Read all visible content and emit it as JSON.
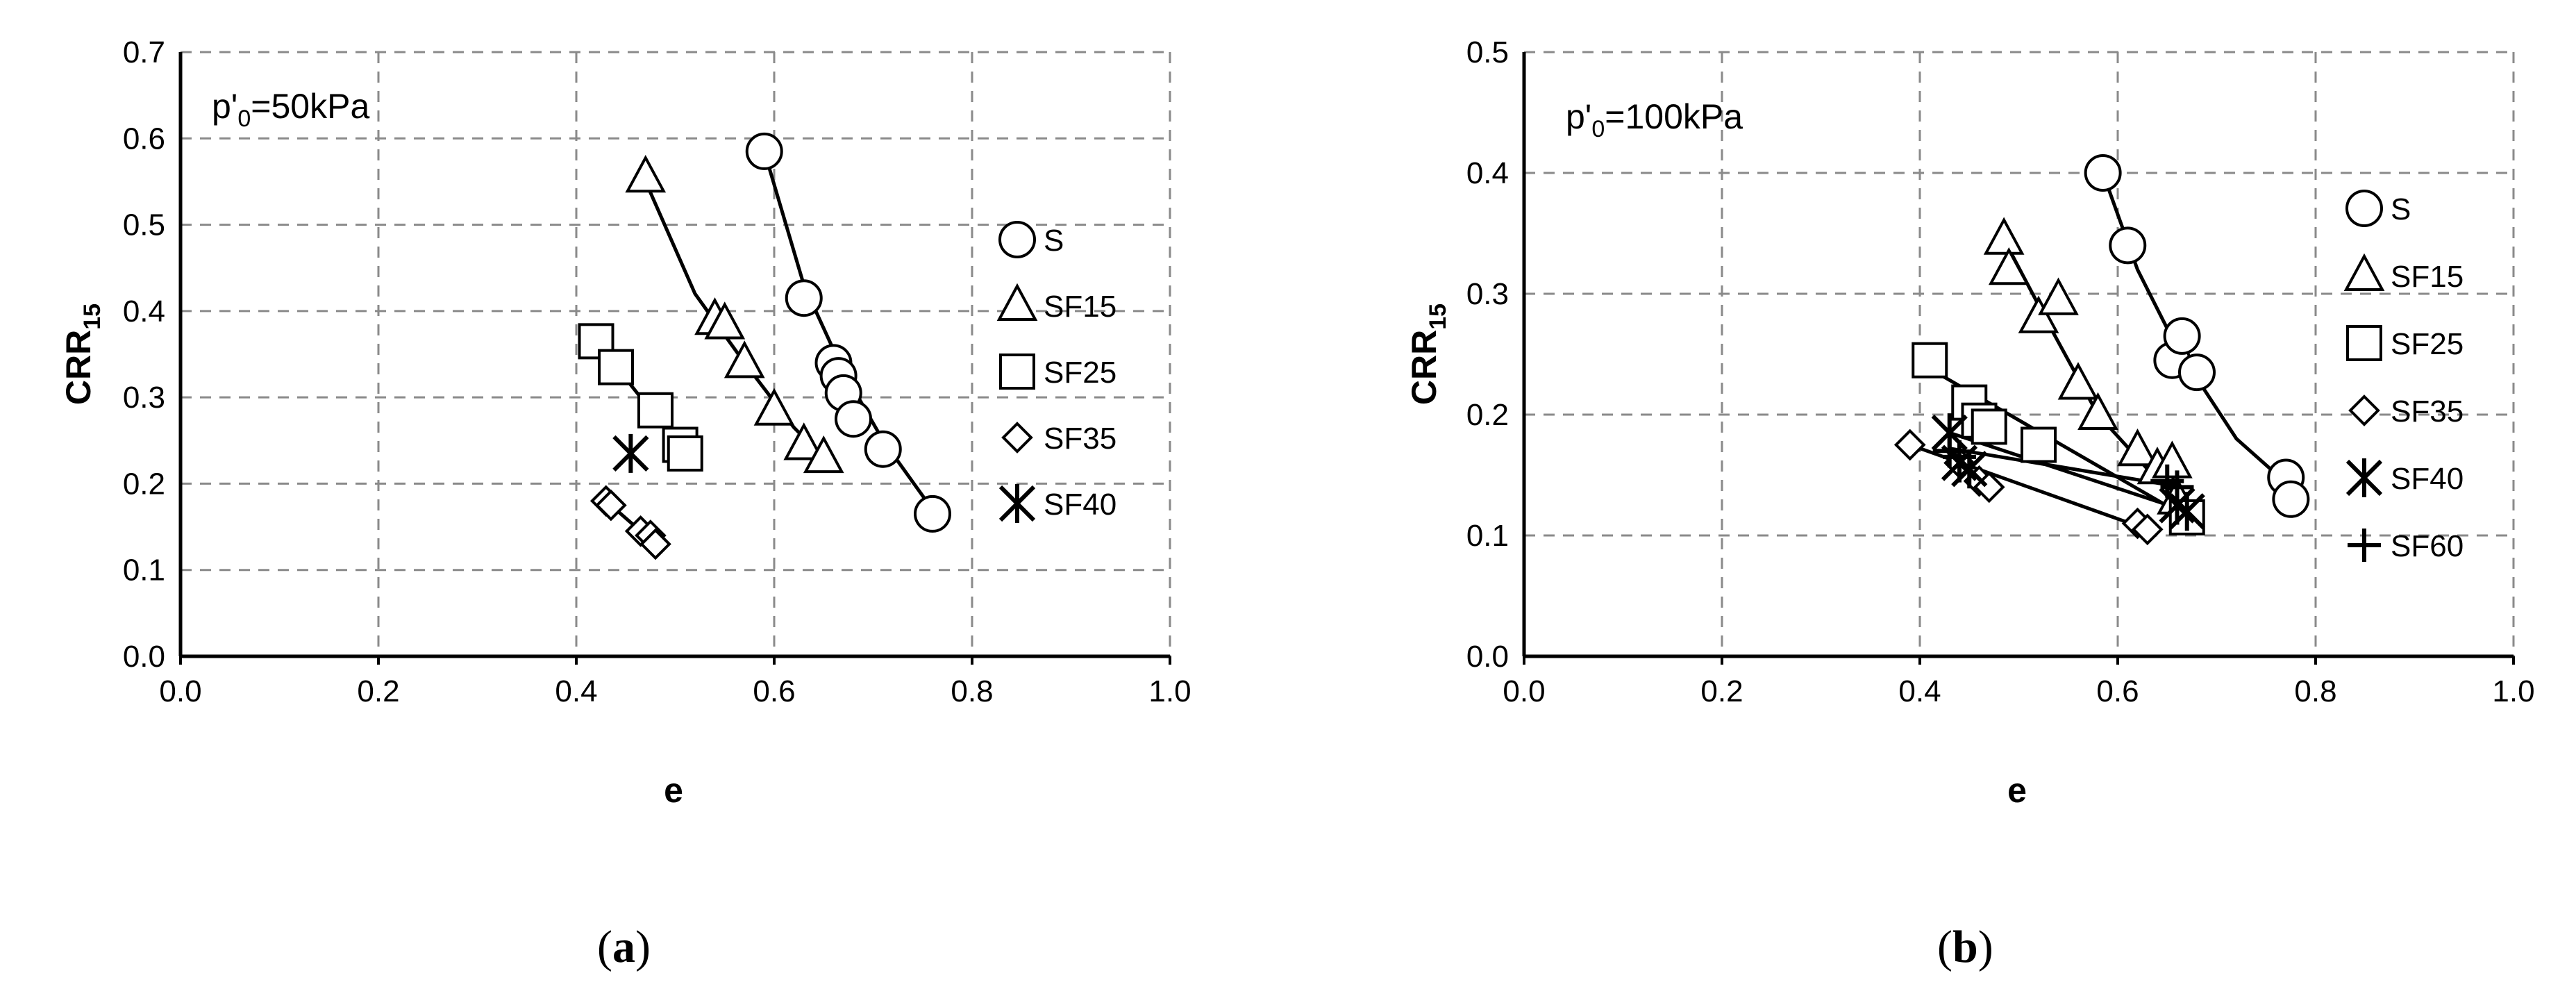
{
  "chart_data": [
    {
      "id": "a",
      "type": "scatter",
      "caption": "a",
      "annotation": {
        "base": "p'",
        "sub": "0",
        "rest": "=50kPa"
      },
      "xlabel": "e",
      "ylabel": {
        "base": "CRR",
        "sub": "15"
      },
      "xlim": [
        0,
        1.0
      ],
      "ylim": [
        0,
        0.7
      ],
      "xticks": [
        "0.0",
        "0.2",
        "0.4",
        "0.6",
        "0.8",
        "1.0"
      ],
      "yticks": [
        "0.0",
        "0.1",
        "0.2",
        "0.3",
        "0.4",
        "0.5",
        "0.6",
        "0.7"
      ],
      "grid": true,
      "legend_position": "right",
      "series": [
        {
          "name": "S",
          "marker": "circle",
          "points": [
            [
              0.59,
              0.585
            ],
            [
              0.63,
              0.415
            ],
            [
              0.66,
              0.34
            ],
            [
              0.665,
              0.325
            ],
            [
              0.67,
              0.305
            ],
            [
              0.68,
              0.275
            ],
            [
              0.71,
              0.24
            ],
            [
              0.76,
              0.165
            ]
          ],
          "fit": [
            [
              0.59,
              0.585
            ],
            [
              0.63,
              0.43
            ],
            [
              0.67,
              0.33
            ],
            [
              0.71,
              0.25
            ],
            [
              0.76,
              0.17
            ]
          ]
        },
        {
          "name": "SF15",
          "marker": "triangle",
          "points": [
            [
              0.47,
              0.555
            ],
            [
              0.54,
              0.39
            ],
            [
              0.55,
              0.385
            ],
            [
              0.57,
              0.34
            ],
            [
              0.6,
              0.285
            ],
            [
              0.63,
              0.245
            ],
            [
              0.65,
              0.23
            ]
          ],
          "fit": [
            [
              0.47,
              0.55
            ],
            [
              0.52,
              0.42
            ],
            [
              0.57,
              0.34
            ],
            [
              0.62,
              0.265
            ],
            [
              0.65,
              0.23
            ]
          ]
        },
        {
          "name": "SF25",
          "marker": "square",
          "points": [
            [
              0.42,
              0.365
            ],
            [
              0.44,
              0.335
            ],
            [
              0.48,
              0.285
            ],
            [
              0.505,
              0.245
            ],
            [
              0.51,
              0.235
            ]
          ],
          "fit": [
            [
              0.42,
              0.365
            ],
            [
              0.51,
              0.235
            ]
          ]
        },
        {
          "name": "SF35",
          "marker": "diamond",
          "points": [
            [
              0.43,
              0.18
            ],
            [
              0.435,
              0.175
            ],
            [
              0.465,
              0.145
            ],
            [
              0.475,
              0.14
            ],
            [
              0.48,
              0.13
            ]
          ],
          "fit": [
            [
              0.43,
              0.18
            ],
            [
              0.48,
              0.13
            ]
          ]
        },
        {
          "name": "SF40",
          "marker": "star",
          "points": [
            [
              0.455,
              0.235
            ]
          ],
          "fit": []
        }
      ]
    },
    {
      "id": "b",
      "type": "scatter",
      "caption": "b",
      "annotation": {
        "base": "p'",
        "sub": "0",
        "rest": "=100kPa"
      },
      "xlabel": "e",
      "ylabel": {
        "base": "CRR",
        "sub": "15"
      },
      "xlim": [
        0,
        1.0
      ],
      "ylim": [
        0,
        0.5
      ],
      "xticks": [
        "0.0",
        "0.2",
        "0.4",
        "0.6",
        "0.8",
        "1.0"
      ],
      "yticks": [
        "0.0",
        "0.1",
        "0.2",
        "0.3",
        "0.4",
        "0.5"
      ],
      "grid": true,
      "legend_position": "right",
      "series": [
        {
          "name": "S",
          "marker": "circle",
          "points": [
            [
              0.585,
              0.4
            ],
            [
              0.61,
              0.34
            ],
            [
              0.655,
              0.245
            ],
            [
              0.665,
              0.265
            ],
            [
              0.68,
              0.235
            ],
            [
              0.77,
              0.148
            ],
            [
              0.775,
              0.13
            ]
          ],
          "fit": [
            [
              0.585,
              0.4
            ],
            [
              0.62,
              0.32
            ],
            [
              0.66,
              0.255
            ],
            [
              0.72,
              0.18
            ],
            [
              0.775,
              0.14
            ]
          ]
        },
        {
          "name": "SF15",
          "marker": "triangle",
          "points": [
            [
              0.485,
              0.345
            ],
            [
              0.49,
              0.32
            ],
            [
              0.52,
              0.28
            ],
            [
              0.54,
              0.295
            ],
            [
              0.56,
              0.225
            ],
            [
              0.58,
              0.2
            ],
            [
              0.62,
              0.17
            ],
            [
              0.64,
              0.155
            ],
            [
              0.655,
              0.16
            ],
            [
              0.66,
              0.13
            ]
          ],
          "fit": [
            [
              0.485,
              0.345
            ],
            [
              0.53,
              0.275
            ],
            [
              0.58,
              0.2
            ],
            [
              0.63,
              0.155
            ],
            [
              0.665,
              0.13
            ]
          ]
        },
        {
          "name": "SF25",
          "marker": "square",
          "points": [
            [
              0.41,
              0.245
            ],
            [
              0.45,
              0.21
            ],
            [
              0.46,
              0.195
            ],
            [
              0.47,
              0.19
            ],
            [
              0.52,
              0.175
            ],
            [
              0.67,
              0.115
            ]
          ],
          "fit": [
            [
              0.41,
              0.238
            ],
            [
              0.67,
              0.115
            ]
          ]
        },
        {
          "name": "SF35",
          "marker": "diamond",
          "points": [
            [
              0.39,
              0.175
            ],
            [
              0.44,
              0.16
            ],
            [
              0.46,
              0.145
            ],
            [
              0.47,
              0.14
            ],
            [
              0.62,
              0.11
            ],
            [
              0.63,
              0.105
            ]
          ],
          "fit": [
            [
              0.39,
              0.175
            ],
            [
              0.63,
              0.105
            ]
          ]
        },
        {
          "name": "SF40",
          "marker": "star",
          "points": [
            [
              0.43,
              0.185
            ],
            [
              0.44,
              0.16
            ],
            [
              0.45,
              0.155
            ],
            [
              0.66,
              0.125
            ],
            [
              0.67,
              0.12
            ]
          ],
          "fit": [
            [
              0.43,
              0.185
            ],
            [
              0.67,
              0.12
            ]
          ]
        },
        {
          "name": "SF60",
          "marker": "plus",
          "points": [
            [
              0.43,
              0.17
            ],
            [
              0.44,
              0.165
            ],
            [
              0.65,
              0.145
            ],
            [
              0.66,
              0.14
            ]
          ],
          "fit": [
            [
              0.43,
              0.172
            ],
            [
              0.665,
              0.14
            ]
          ]
        }
      ]
    }
  ]
}
